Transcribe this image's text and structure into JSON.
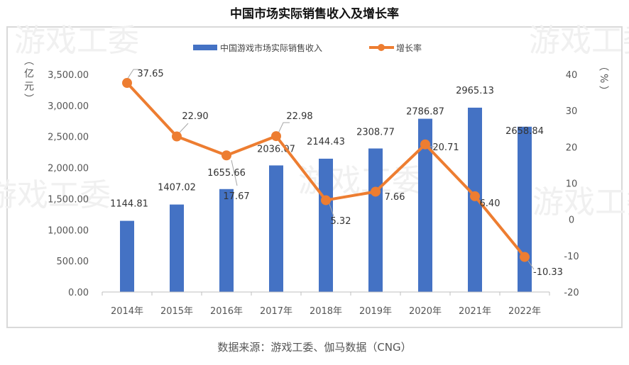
{
  "chart_data": {
    "type": "bar+line",
    "title": "中国市场实际销售收入及增长率",
    "categories": [
      "2014年",
      "2015年",
      "2016年",
      "2017年",
      "2018年",
      "2019年",
      "2020年",
      "2021年",
      "2022年"
    ],
    "series": [
      {
        "name": "中国游戏市场实际销售收入",
        "type": "bar",
        "axis": "left",
        "color": "#4472C4",
        "values": [
          1144.81,
          1407.02,
          1655.66,
          2036.07,
          2144.43,
          2308.77,
          2786.87,
          2965.13,
          2658.84
        ],
        "labels": [
          "1144.81",
          "1407.02",
          "1655.66",
          "2036.07",
          "2144.43",
          "2308.77",
          "2786.87",
          "2965.13",
          "2658.84"
        ]
      },
      {
        "name": "增长率",
        "type": "line",
        "axis": "right",
        "color": "#ED7D31",
        "values": [
          37.65,
          22.9,
          17.67,
          22.98,
          5.32,
          7.66,
          20.71,
          6.4,
          -10.33
        ],
        "labels": [
          "37.65",
          "22.90",
          "17.67",
          "22.98",
          "5.32",
          "7.66",
          "20.71",
          "6.40",
          "-10.33"
        ]
      }
    ],
    "left_axis": {
      "label": "（亿元）",
      "ylim": [
        0,
        3500
      ],
      "ticks": [
        "0.00",
        "500.00",
        "1,000.00",
        "1,500.00",
        "2,000.00",
        "2,500.00",
        "3,000.00",
        "3,500.00"
      ]
    },
    "right_axis": {
      "label": "（%）",
      "ylim": [
        -20,
        40
      ],
      "ticks": [
        "-20",
        "-10",
        "0",
        "10",
        "20",
        "30",
        "40"
      ]
    },
    "grid": false,
    "legend": "top"
  },
  "source": "数据来源：游戏工委、伽马数据（CNG）",
  "watermark": "游戏工委"
}
